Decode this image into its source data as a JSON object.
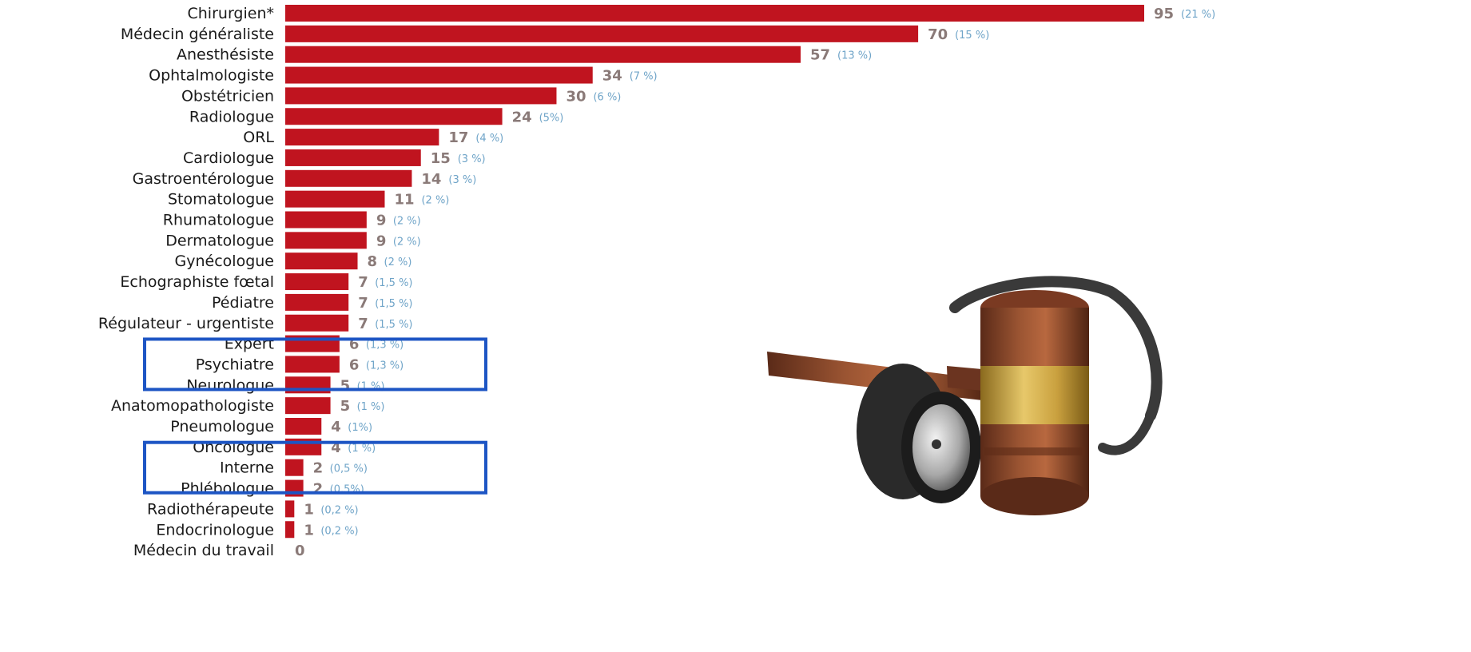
{
  "chart_data": {
    "type": "bar",
    "orientation": "horizontal",
    "categories": [
      "Chirurgien*",
      "Médecin généraliste",
      "Anesthésiste",
      "Ophtalmologiste",
      "Obstétricien",
      "Radiologue",
      "ORL",
      "Cardiologue",
      "Gastroentérologue",
      "Stomatologue",
      "Rhumatologue",
      "Dermatologue",
      "Gynécologue",
      "Echographiste fœtal",
      "Pédiatre",
      "Régulateur - urgentiste",
      "Expert",
      "Psychiatre",
      "Neurologue",
      "Anatomopathologiste",
      "Pneumologue",
      "Oncologue",
      "Interne",
      "Phlébologue",
      "Radiothérapeute",
      "Endocrinologue",
      "Médecin du travail"
    ],
    "values": [
      95,
      70,
      57,
      34,
      30,
      24,
      17,
      15,
      14,
      11,
      9,
      9,
      8,
      7,
      7,
      7,
      6,
      6,
      5,
      5,
      4,
      4,
      2,
      2,
      1,
      1,
      0
    ],
    "percent_labels": [
      "(21 %)",
      "(15 %)",
      "(13 %)",
      "(7 %)",
      "(6 %)",
      "(5%)",
      "(4 %)",
      "(3 %)",
      "(3 %)",
      "(2 %)",
      "(2 %)",
      "(2 %)",
      "(2 %)",
      "(1,5 %)",
      "(1,5 %)",
      "(1,5 %)",
      "(1,3 %)",
      "(1,3 %)",
      "(1 %)",
      "(1 %)",
      "(1%)",
      "(1 %)",
      "(0,5 %)",
      "(0,5%)",
      "(0,2 %)",
      "(0,2 %)",
      ""
    ],
    "highlighted": [
      "Psychiatre",
      "Interne"
    ],
    "xlim": [
      0,
      95
    ],
    "grid": false,
    "legend": "none",
    "title": "",
    "xlabel": "",
    "ylabel": ""
  },
  "colors": {
    "bar": "#c0141f",
    "value_text": "#8a7a78",
    "percent_text": "#6fa4c8",
    "highlight_box": "#1d55c4"
  },
  "decorations": {
    "image": "gavel-and-stethoscope-icon"
  }
}
